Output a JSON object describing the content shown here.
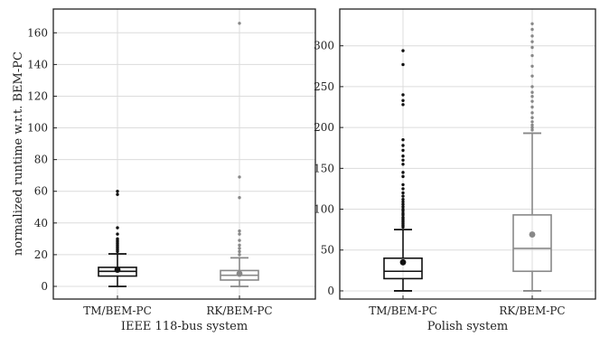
{
  "chart_data": [
    {
      "type": "box",
      "ylabel": "normalized runtime w.r.t. BEM-PC",
      "xlabel": "IEEE 118-bus system",
      "ylim": [
        -8,
        175
      ],
      "yticks": [
        0,
        20,
        40,
        60,
        80,
        100,
        120,
        140,
        160
      ],
      "grid": true,
      "categories": [
        "TM/BEM-PC",
        "RK/BEM-PC"
      ],
      "series": [
        {
          "color": "#111111",
          "whislo": 0,
          "q1": 6.5,
          "med": 9.5,
          "q3": 12,
          "whishi": 20.5,
          "mean": 10.5,
          "fliers": [
            22,
            23,
            24,
            25,
            26,
            27,
            28,
            29,
            30,
            33,
            37,
            58,
            60
          ]
        },
        {
          "color": "#888888",
          "whislo": 0,
          "q1": 4,
          "med": 7,
          "q3": 10,
          "whishi": 18,
          "mean": 8,
          "fliers": [
            20,
            22,
            24,
            26,
            29,
            33,
            35,
            56,
            69,
            166
          ]
        }
      ]
    },
    {
      "type": "box",
      "ylabel": "",
      "xlabel": "Polish system",
      "ylim": [
        -10,
        345
      ],
      "yticks": [
        0,
        50,
        100,
        150,
        200,
        250,
        300
      ],
      "grid": true,
      "categories": [
        "TM/BEM-PC",
        "RK/BEM-PC"
      ],
      "series": [
        {
          "color": "#111111",
          "whislo": 0,
          "q1": 15,
          "med": 24,
          "q3": 40,
          "whishi": 75,
          "mean": 35,
          "fliers": [
            78,
            80,
            82,
            84,
            86,
            88,
            90,
            93,
            95,
            98,
            100,
            103,
            106,
            109,
            112,
            116,
            120,
            125,
            130,
            140,
            145,
            155,
            160,
            165,
            172,
            178,
            185,
            228,
            233,
            240,
            277,
            294
          ]
        },
        {
          "color": "#888888",
          "whislo": 0,
          "q1": 24,
          "med": 52,
          "q3": 93,
          "whishi": 193,
          "mean": 69,
          "fliers": [
            197,
            200,
            203,
            207,
            212,
            218,
            225,
            232,
            238,
            243,
            250,
            263,
            275,
            288,
            298,
            305,
            312,
            320,
            327
          ]
        }
      ]
    }
  ]
}
